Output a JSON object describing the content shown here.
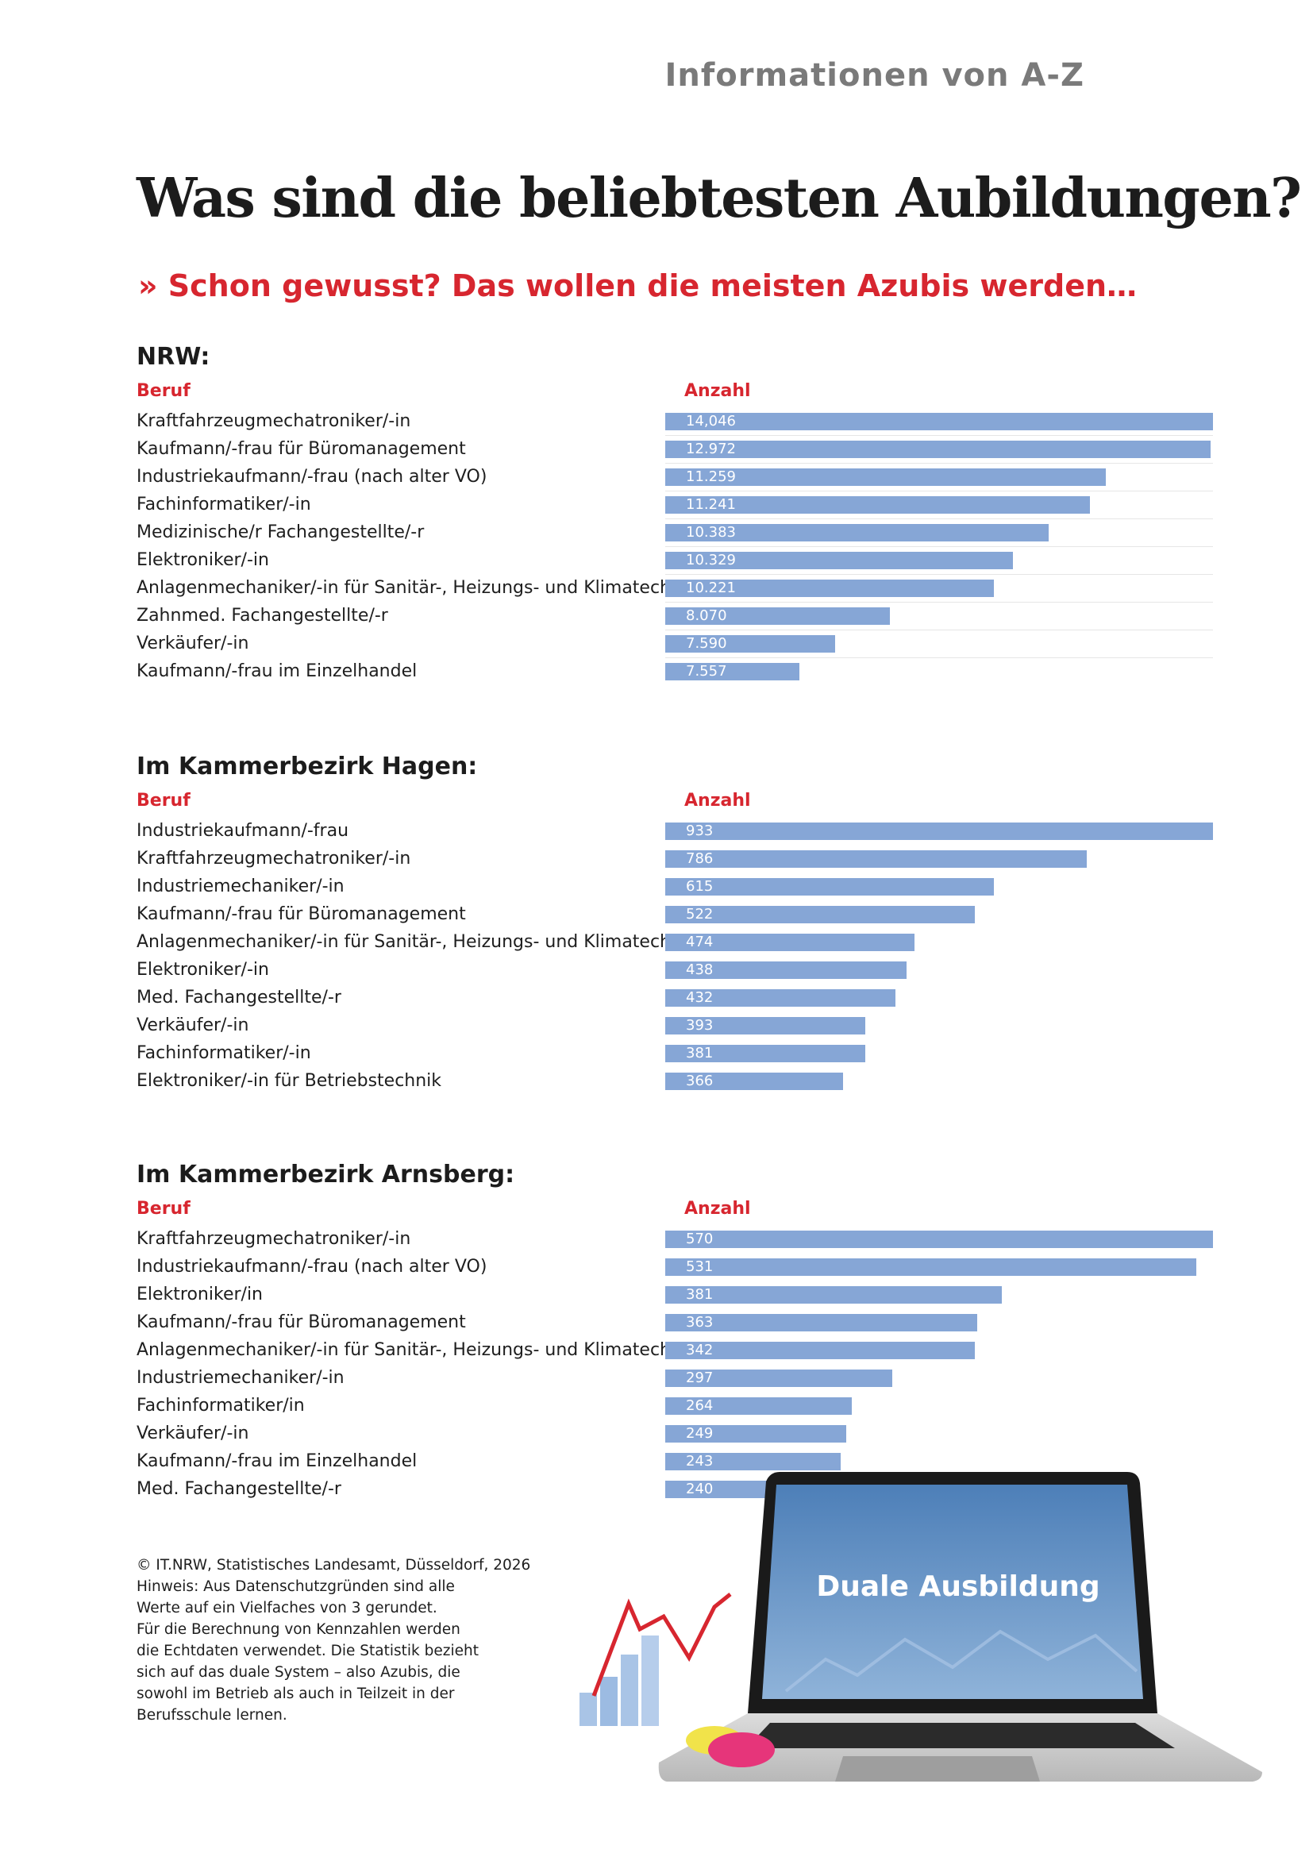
{
  "header": {
    "top_label": "Informationen von A-Z",
    "title": "Was sind die beliebtesten Aubildungen?",
    "subtitle": "» Schon gewusst? Das wollen die meisten Azubis werden…"
  },
  "chart_data": [
    {
      "type": "bar",
      "title": "NRW:",
      "category_header": "Beruf",
      "value_header": "Anzahl",
      "categories": [
        "Kraftfahrzeugmechatroniker/-in",
        "Kaufmann/-frau für Büromanagement",
        "Industriekaufmann/-frau (nach alter VO)",
        "Fachinformatiker/-in",
        "Medizinische/r Fachangestellte/-r",
        "Elektroniker/-in",
        "Anlagenmechaniker/-in für Sanitär-, Heizungs- und Klimatechnik",
        "Zahnmed. Fachangestellte/-r",
        "Verkäufer/-in",
        "Kaufmann/-frau im Einzelhandel"
      ],
      "values": [
        14046,
        12972,
        11259,
        11241,
        10383,
        10329,
        10221,
        8070,
        7590,
        7557
      ],
      "value_labels": [
        "14,046",
        "12.972",
        "11.259",
        "11.241",
        "10.383",
        "10.329",
        "10.221",
        "8.070",
        "7.590",
        "7.557"
      ],
      "bar_fractions": [
        1.0,
        0.995,
        0.805,
        0.775,
        0.7,
        0.635,
        0.6,
        0.41,
        0.31,
        0.245
      ]
    },
    {
      "type": "bar",
      "title": "Im Kammerbezirk Hagen:",
      "category_header": "Beruf",
      "value_header": "Anzahl",
      "categories": [
        "Industriekaufmann/-frau",
        "Kraftfahrzeugmechatroniker/-in",
        "Industriemechaniker/-in",
        "Kaufmann/-frau für Büromanagement",
        "Anlagenmechaniker/-in für Sanitär-, Heizungs- und Klimatechnik",
        "Elektroniker/-in",
        "Med. Fachangestellte/-r",
        "Verkäufer/-in",
        "Fachinformatiker/-in",
        "Elektroniker/-in für Betriebstechnik"
      ],
      "values": [
        933,
        786,
        615,
        522,
        474,
        438,
        432,
        393,
        381,
        366
      ],
      "value_labels": [
        "933",
        "786",
        "615",
        "522",
        "474",
        "438",
        "432",
        "393",
        "381",
        "366"
      ],
      "bar_fractions": [
        1.0,
        0.77,
        0.6,
        0.565,
        0.455,
        0.44,
        0.42,
        0.365,
        0.365,
        0.325
      ]
    },
    {
      "type": "bar",
      "title": "Im Kammerbezirk Arnsberg:",
      "category_header": "Beruf",
      "value_header": "Anzahl",
      "categories": [
        "Kraftfahrzeugmechatroniker/-in",
        "Industriekaufmann/-frau (nach alter VO)",
        "Elektroniker/in",
        "Kaufmann/-frau für Büromanagement",
        "Anlagenmechaniker/-in für Sanitär-, Heizungs- und Klimatechnik",
        "Industriemechaniker/-in",
        "Fachinformatiker/in",
        "Verkäufer/-in",
        "Kaufmann/-frau im Einzelhandel",
        "Med. Fachangestellte/-r"
      ],
      "values": [
        570,
        531,
        381,
        363,
        342,
        297,
        264,
        249,
        243,
        240
      ],
      "value_labels": [
        "570",
        "531",
        "381",
        "363",
        "342",
        "297",
        "264",
        "249",
        "243",
        "240"
      ],
      "bar_fractions": [
        1.0,
        0.97,
        0.615,
        0.57,
        0.565,
        0.415,
        0.34,
        0.33,
        0.32,
        0.255
      ]
    }
  ],
  "footnote": [
    "©  IT.NRW, Statistisches Landesamt, Düsseldorf, 2026",
    "Hinweis: Aus Datenschutzgründen sind alle",
    "Werte auf ein Vielfaches von 3 gerundet.",
    "Für die Berechnung von Kennzahlen werden",
    "die Echtdaten verwendet. Die Statistik bezieht",
    "sich auf das duale System – also Azubis, die",
    "sowohl im Betrieb als auch in Teilzeit in der",
    "Berufsschule lernen."
  ],
  "illustration": {
    "screen_text": "Duale Ausbildung",
    "icon": "laptop-with-chart-icon",
    "bar_color": "#86a6d6",
    "accent_color": "#d7262f"
  }
}
